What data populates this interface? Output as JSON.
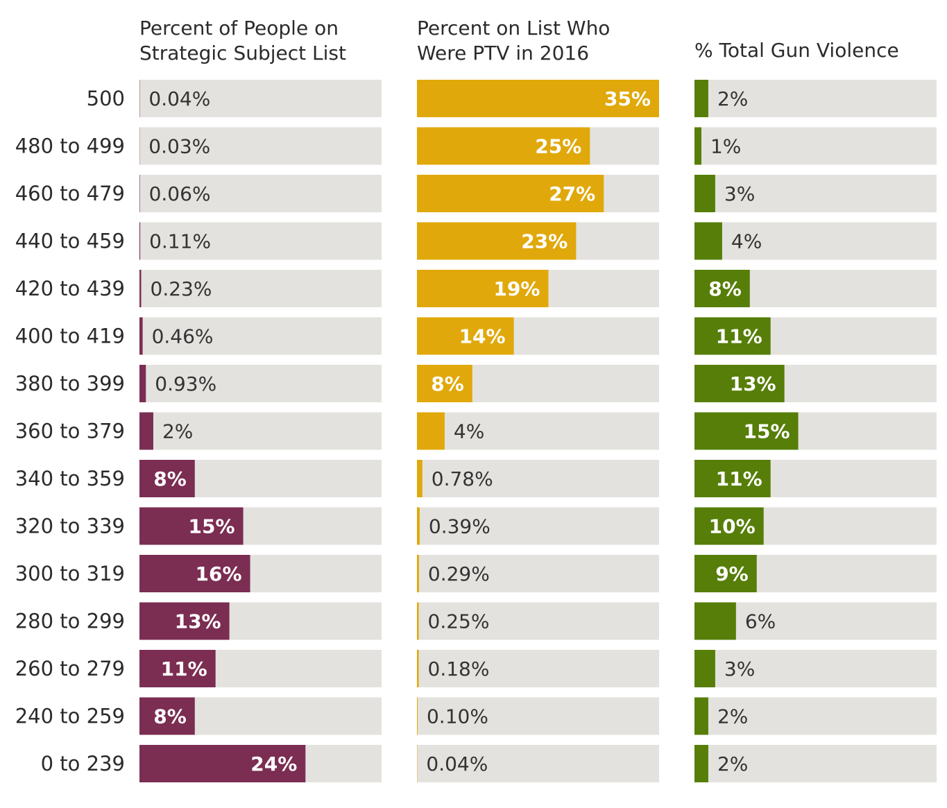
{
  "chart_data": {
    "type": "bar",
    "orientation": "horizontal",
    "categories": [
      "500",
      "480 to 499",
      "460 to 479",
      "440 to 459",
      "420 to 439",
      "400 to 419",
      "380 to 399",
      "360 to 379",
      "340 to 359",
      "320 to 339",
      "300 to 319",
      "280 to 299",
      "260 to 279",
      "240 to 259",
      "0 to 239"
    ],
    "panels": [
      {
        "title": [
          "Percent of People on",
          "Strategic Subject List"
        ],
        "color": "#7b2d52",
        "xlim": [
          0,
          35
        ],
        "values": [
          0.04,
          0.03,
          0.06,
          0.11,
          0.23,
          0.46,
          0.93,
          2,
          8,
          15,
          16,
          13,
          11,
          8,
          24
        ],
        "labels": [
          "0.04%",
          "0.03%",
          "0.06%",
          "0.11%",
          "0.23%",
          "0.46%",
          "0.93%",
          "2%",
          "8%",
          "15%",
          "16%",
          "13%",
          "11%",
          "8%",
          "24%"
        ]
      },
      {
        "title": [
          "Percent on List Who",
          "Were PTV in 2016"
        ],
        "color": "#e0a80a",
        "xlim": [
          0,
          35
        ],
        "values": [
          35,
          25,
          27,
          23,
          19,
          14,
          8,
          4,
          0.78,
          0.39,
          0.29,
          0.25,
          0.18,
          0.1,
          0.04
        ],
        "labels": [
          "35%",
          "25%",
          "27%",
          "23%",
          "19%",
          "14%",
          "8%",
          "4%",
          "0.78%",
          "0.39%",
          "0.29%",
          "0.25%",
          "0.18%",
          "0.10%",
          "0.04%"
        ]
      },
      {
        "title": [
          "% Total Gun Violence"
        ],
        "color": "#567e08",
        "xlim": [
          0,
          35
        ],
        "values": [
          2,
          1,
          3,
          4,
          8,
          11,
          13,
          15,
          11,
          10,
          9,
          6,
          3,
          2,
          2
        ],
        "labels": [
          "2%",
          "1%",
          "3%",
          "4%",
          "8%",
          "11%",
          "13%",
          "15%",
          "11%",
          "10%",
          "9%",
          "6%",
          "3%",
          "2%",
          "2%"
        ]
      }
    ],
    "track_color": "#e3e2de",
    "grid": false,
    "legend": "none"
  }
}
